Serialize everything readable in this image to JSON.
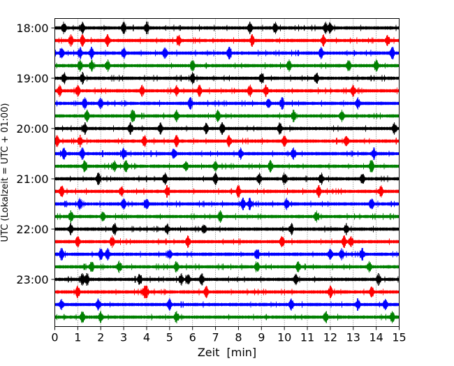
{
  "chart_data": {
    "type": "line",
    "title": "",
    "xlabel": "Zeit  [min]",
    "ylabel": "UTC (Lokalzeit = UTC + 01:00)",
    "xlim": [
      0,
      15
    ],
    "xticks": [
      0,
      1,
      2,
      3,
      4,
      5,
      6,
      7,
      8,
      9,
      10,
      11,
      12,
      13,
      14,
      15
    ],
    "ytick_labels": [
      "18:00",
      "19:00",
      "20:00",
      "21:00",
      "22:00",
      "23:00"
    ],
    "trace_interval_min": 15,
    "grid": "vertical dotted",
    "color_cycle": [
      "#000000",
      "#ff0000",
      "#0000ff",
      "#008000"
    ],
    "traces": [
      {
        "start": "18:00",
        "events": [
          0.4,
          1.2,
          3.0,
          4.0,
          8.5,
          9.6,
          11.8,
          12.0
        ]
      },
      {
        "start": "18:15",
        "events": [
          0.7,
          1.2,
          2.3,
          5.4,
          8.6,
          11.7,
          14.5
        ]
      },
      {
        "start": "18:30",
        "events": [
          0.3,
          1.1,
          1.6,
          3.0,
          4.8,
          7.6,
          11.6,
          14.7
        ]
      },
      {
        "start": "18:45",
        "events": [
          1.1,
          1.6,
          2.3,
          6.0,
          10.2,
          12.8,
          14.0
        ]
      },
      {
        "start": "19:00",
        "events": [
          0.4,
          1.2,
          6.0,
          9.0,
          11.4
        ]
      },
      {
        "start": "19:15",
        "events": [
          0.2,
          1.0,
          3.8,
          5.3,
          6.3,
          8.5,
          9.2,
          13.0
        ]
      },
      {
        "start": "19:30",
        "events": [
          1.3,
          2.0,
          5.9,
          9.3,
          9.9,
          13.2
        ]
      },
      {
        "start": "19:45",
        "events": [
          1.4,
          3.4,
          5.3,
          7.1,
          10.4,
          12.5
        ]
      },
      {
        "start": "20:00",
        "events": [
          1.3,
          3.3,
          4.6,
          6.6,
          7.3,
          9.8,
          14.8
        ]
      },
      {
        "start": "20:15",
        "events": [
          0.1,
          1.1,
          3.9,
          5.3,
          7.6,
          10.0,
          12.7
        ]
      },
      {
        "start": "20:30",
        "events": [
          0.4,
          1.2,
          3.0,
          5.2,
          8.1,
          10.4,
          13.9
        ]
      },
      {
        "start": "20:45",
        "events": [
          1.3,
          2.6,
          3.1,
          5.7,
          7.0,
          9.4,
          13.8
        ]
      },
      {
        "start": "21:00",
        "events": [
          1.9,
          4.8,
          7.0,
          8.9,
          10.0,
          11.6,
          13.4
        ]
      },
      {
        "start": "21:15",
        "events": [
          0.3,
          2.9,
          4.9,
          8.0,
          11.5,
          14.2
        ]
      },
      {
        "start": "21:30",
        "events": [
          1.1,
          3.0,
          4.0,
          8.2,
          8.5,
          10.1,
          13.8
        ]
      },
      {
        "start": "21:45",
        "events": [
          0.7,
          2.1,
          7.2,
          11.4
        ]
      },
      {
        "start": "22:00",
        "events": [
          0.7,
          2.6,
          4.9,
          6.5,
          10.3,
          12.7
        ]
      },
      {
        "start": "22:15",
        "events": [
          1.0,
          2.5,
          5.8,
          9.9,
          12.6,
          12.9
        ]
      },
      {
        "start": "22:30",
        "events": [
          0.3,
          2.0,
          2.3,
          5.0,
          8.8,
          12.0,
          12.5,
          13.4
        ]
      },
      {
        "start": "22:45",
        "events": [
          1.6,
          2.8,
          5.3,
          8.8,
          10.6,
          13.7
        ]
      },
      {
        "start": "23:00",
        "events": [
          1.2,
          1.4,
          3.7,
          5.5,
          5.8,
          6.4,
          10.5,
          14.1
        ]
      },
      {
        "start": "23:15",
        "events": [
          1.0,
          3.9,
          4.0,
          6.6,
          12.0,
          13.8
        ]
      },
      {
        "start": "23:30",
        "events": [
          0.3,
          1.9,
          5.0,
          10.3,
          13.2,
          14.4
        ]
      },
      {
        "start": "23:45",
        "events": [
          1.2,
          2.0,
          5.3,
          11.8,
          14.7
        ]
      }
    ]
  }
}
